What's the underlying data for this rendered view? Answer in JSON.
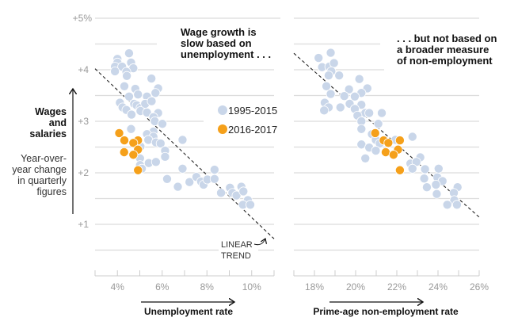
{
  "chart_data": [
    {
      "type": "scatter",
      "title": "Wage growth is slow based on unemployment . . .",
      "title_lines": [
        "Wage growth is",
        "slow based on",
        "unemployment . . ."
      ],
      "xlabel": "Unemployment rate",
      "ylabel": "Wages and salaries",
      "ylabel_lines": [
        "Wages",
        "and",
        "salaries"
      ],
      "ylabel_sub_lines": [
        "Year-over-",
        "year change",
        "in quarterly",
        "figures"
      ],
      "xlim": [
        3,
        11
      ],
      "ylim": [
        0,
        5
      ],
      "x_ticks": [
        4,
        6,
        8,
        10
      ],
      "x_tick_labels": [
        "4%",
        "6%",
        "8%",
        "10%"
      ],
      "y_ticks": [
        5,
        4,
        3,
        2,
        1
      ],
      "y_tick_labels": [
        "+5%",
        "+4",
        "+3",
        "+2",
        "+1"
      ],
      "grid": true,
      "legend_position": "center-right",
      "series": [
        {
          "name": "1995-2015",
          "color": "#c9d6e9",
          "points": [
            [
              4.0,
              4.21
            ],
            [
              4.52,
              4.32
            ],
            [
              4.0,
              4.14
            ],
            [
              3.89,
              4.06
            ],
            [
              4.21,
              4.06
            ],
            [
              3.89,
              3.97
            ],
            [
              4.61,
              4.14
            ],
            [
              4.71,
              4.03
            ],
            [
              4.4,
              3.96
            ],
            [
              4.42,
              3.88
            ],
            [
              4.31,
              3.68
            ],
            [
              5.52,
              3.83
            ],
            [
              4.8,
              3.63
            ],
            [
              4.52,
              3.48
            ],
            [
              4.92,
              3.52
            ],
            [
              5.82,
              3.64
            ],
            [
              5.7,
              3.55
            ],
            [
              5.32,
              3.48
            ],
            [
              4.11,
              3.36
            ],
            [
              4.23,
              3.27
            ],
            [
              4.4,
              3.22
            ],
            [
              4.63,
              3.13
            ],
            [
              4.75,
              3.34
            ],
            [
              4.86,
              3.31
            ],
            [
              5.03,
              3.26
            ],
            [
              5.24,
              3.34
            ],
            [
              5.53,
              3.39
            ],
            [
              5.03,
              3.2
            ],
            [
              5.32,
              3.17
            ],
            [
              5.82,
              3.16
            ],
            [
              5.61,
              3.08
            ],
            [
              5.67,
              3.0
            ],
            [
              6.01,
              2.95
            ],
            [
              4.61,
              2.85
            ],
            [
              5.61,
              2.8
            ],
            [
              5.32,
              2.75
            ],
            [
              5.61,
              2.7
            ],
            [
              5.38,
              2.64
            ],
            [
              5.72,
              2.59
            ],
            [
              5.93,
              2.57
            ],
            [
              6.91,
              2.64
            ],
            [
              5.03,
              2.51
            ],
            [
              6.13,
              2.43
            ],
            [
              5.01,
              2.28
            ],
            [
              6.13,
              2.31
            ],
            [
              5.4,
              2.19
            ],
            [
              5.72,
              2.21
            ],
            [
              5.01,
              2.15
            ],
            [
              5.09,
              2.08
            ],
            [
              6.91,
              2.08
            ],
            [
              6.22,
              1.88
            ],
            [
              6.7,
              1.73
            ],
            [
              7.22,
              1.82
            ],
            [
              7.53,
              1.92
            ],
            [
              7.74,
              1.83
            ],
            [
              7.85,
              1.77
            ],
            [
              8.02,
              1.87
            ],
            [
              8.34,
              2.06
            ],
            [
              8.34,
              1.88
            ],
            [
              8.63,
              1.61
            ],
            [
              9.03,
              1.71
            ],
            [
              9.14,
              1.61
            ],
            [
              9.32,
              1.56
            ],
            [
              9.54,
              1.73
            ],
            [
              9.63,
              1.64
            ],
            [
              9.83,
              1.47
            ],
            [
              9.61,
              1.38
            ],
            [
              9.94,
              1.38
            ]
          ]
        },
        {
          "name": "2016-2017",
          "color": "#f5a01a",
          "points": [
            [
              4.08,
              2.77
            ],
            [
              4.31,
              2.63
            ],
            [
              4.92,
              2.63
            ],
            [
              4.71,
              2.58
            ],
            [
              4.3,
              2.4
            ],
            [
              4.92,
              2.45
            ],
            [
              4.71,
              2.35
            ],
            [
              4.92,
              2.05
            ]
          ]
        }
      ],
      "trend_line": {
        "label_lines": [
          "LINEAR",
          "TREND"
        ],
        "from": [
          3,
          4.02
        ],
        "to": [
          11,
          0.72
        ]
      }
    },
    {
      "type": "scatter",
      "title": ". . . but not based on a broader measure of non-employment",
      "title_lines": [
        ". . . but not based on",
        "a broader measure",
        "of non-employment"
      ],
      "xlabel": "Prime-age non-employment rate",
      "xlim": [
        17,
        26
      ],
      "ylim": [
        0,
        5
      ],
      "x_ticks": [
        18,
        20,
        22,
        24,
        26
      ],
      "x_tick_labels": [
        "18%",
        "20%",
        "22%",
        "24%",
        "26%"
      ],
      "grid": true,
      "series": [
        {
          "name": "1995-2015",
          "color": "#c9d6e9",
          "points": [
            [
              18.2,
              4.23
            ],
            [
              18.79,
              4.33
            ],
            [
              18.37,
              4.05
            ],
            [
              18.72,
              4.06
            ],
            [
              18.95,
              4.13
            ],
            [
              18.82,
              3.97
            ],
            [
              18.69,
              3.89
            ],
            [
              19.2,
              3.89
            ],
            [
              20.18,
              3.82
            ],
            [
              18.58,
              3.68
            ],
            [
              19.68,
              3.62
            ],
            [
              20.57,
              3.64
            ],
            [
              18.79,
              3.53
            ],
            [
              20.28,
              3.55
            ],
            [
              19.45,
              3.49
            ],
            [
              19.96,
              3.48
            ],
            [
              18.5,
              3.36
            ],
            [
              18.69,
              3.27
            ],
            [
              18.47,
              3.21
            ],
            [
              19.26,
              3.27
            ],
            [
              19.71,
              3.34
            ],
            [
              20.28,
              3.32
            ],
            [
              19.96,
              3.24
            ],
            [
              20.47,
              3.16
            ],
            [
              20.66,
              3.16
            ],
            [
              20.09,
              3.11
            ],
            [
              20.28,
              3.0
            ],
            [
              21.27,
              3.16
            ],
            [
              21.1,
              2.95
            ],
            [
              20.28,
              2.85
            ],
            [
              20.79,
              2.75
            ],
            [
              20.98,
              2.64
            ],
            [
              21.17,
              2.57
            ],
            [
              21.93,
              2.64
            ],
            [
              22.76,
              2.7
            ],
            [
              20.28,
              2.55
            ],
            [
              20.66,
              2.49
            ],
            [
              20.98,
              2.43
            ],
            [
              20.47,
              2.28
            ],
            [
              23.14,
              2.3
            ],
            [
              22.66,
              2.18
            ],
            [
              22.95,
              2.21
            ],
            [
              22.76,
              2.08
            ],
            [
              23.37,
              2.07
            ],
            [
              24.03,
              2.08
            ],
            [
              23.33,
              1.89
            ],
            [
              23.97,
              1.91
            ],
            [
              24.22,
              1.84
            ],
            [
              23.9,
              1.77
            ],
            [
              23.46,
              1.72
            ],
            [
              24.95,
              1.72
            ],
            [
              24.77,
              1.61
            ],
            [
              23.94,
              1.59
            ],
            [
              24.79,
              1.47
            ],
            [
              24.45,
              1.38
            ],
            [
              24.92,
              1.38
            ]
          ]
        },
        {
          "name": "2016-2017",
          "color": "#f5a01a",
          "points": [
            [
              20.95,
              2.77
            ],
            [
              21.36,
              2.63
            ],
            [
              22.15,
              2.63
            ],
            [
              21.59,
              2.58
            ],
            [
              22.06,
              2.45
            ],
            [
              21.46,
              2.4
            ],
            [
              21.84,
              2.35
            ],
            [
              22.15,
              2.05
            ]
          ]
        }
      ],
      "trend_line": {
        "from": [
          17,
          4.32
        ],
        "to": [
          26,
          1.14
        ]
      }
    }
  ]
}
